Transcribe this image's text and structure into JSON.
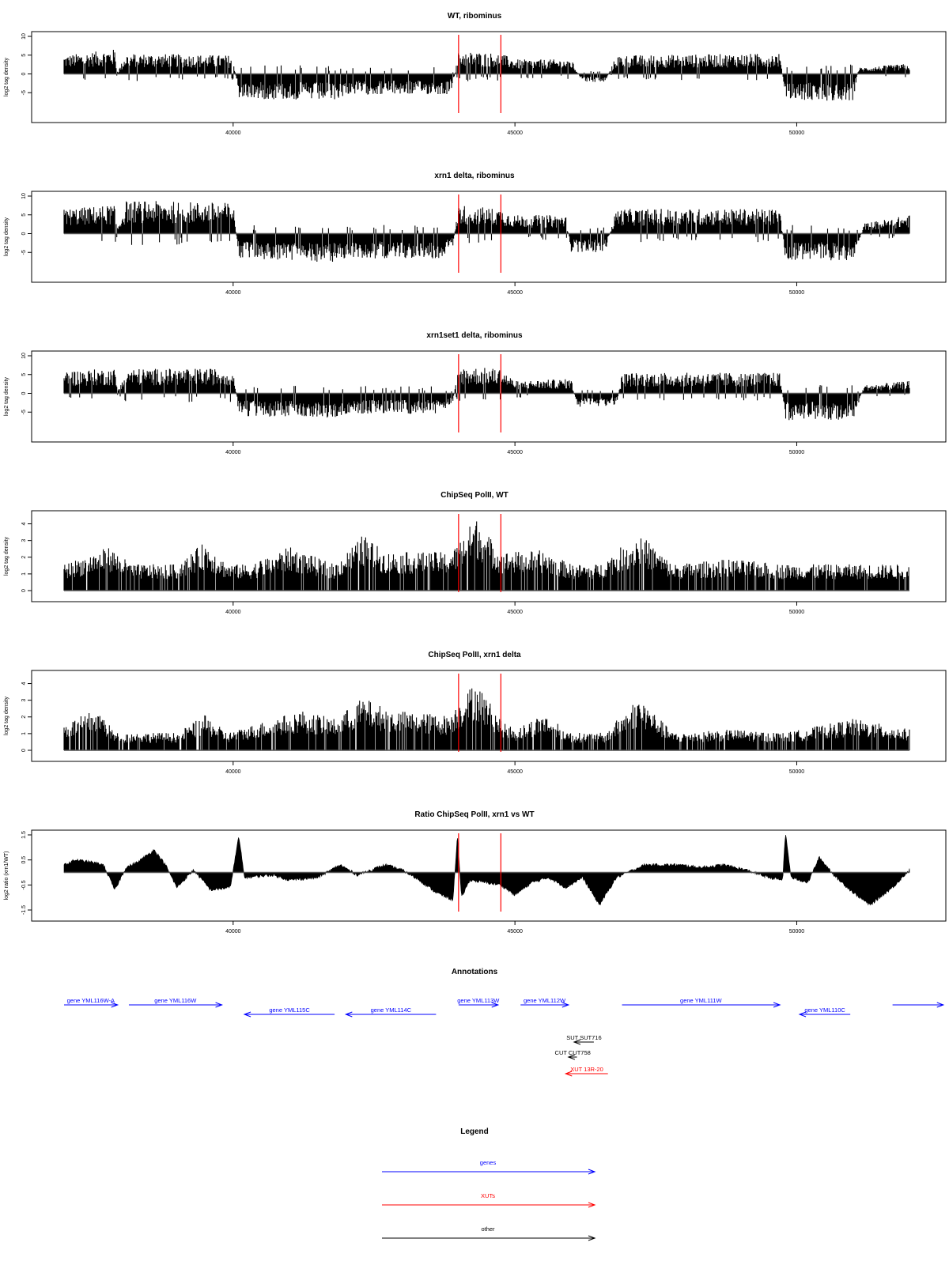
{
  "colors": {
    "gene": "#0000ff",
    "xut": "#ff0000",
    "other": "#000000",
    "marker": "#ff0000",
    "bars": "#000000"
  },
  "x_axis_ticks": [
    "40000",
    "45000",
    "50000"
  ],
  "chart_data": [
    {
      "id": "wt",
      "type": "bar",
      "title": "WT, ribominus",
      "ylabel": "log2 tag density",
      "xlim": [
        37000,
        52000
      ],
      "ylim": [
        -10,
        10
      ],
      "yticks": [
        "-5",
        "0",
        "5",
        "10"
      ],
      "grid": false,
      "markers_x": [
        44000,
        44750
      ],
      "profile": [
        [
          37000,
          4.5
        ],
        [
          37900,
          6
        ],
        [
          37950,
          0.5
        ],
        [
          38100,
          5
        ],
        [
          40000,
          4.5
        ],
        [
          40100,
          -6
        ],
        [
          41800,
          -6.5
        ],
        [
          42000,
          -5
        ],
        [
          43800,
          -5
        ],
        [
          43900,
          -3
        ],
        [
          44000,
          5.5
        ],
        [
          44750,
          5
        ],
        [
          45000,
          3.5
        ],
        [
          46000,
          3.5
        ],
        [
          46200,
          -2
        ],
        [
          46600,
          -2
        ],
        [
          46800,
          4.5
        ],
        [
          49700,
          5
        ],
        [
          49800,
          -6.5
        ],
        [
          51000,
          -6.5
        ],
        [
          51100,
          1.5
        ],
        [
          52000,
          2.5
        ]
      ]
    },
    {
      "id": "xrn1",
      "type": "bar",
      "title": "xrn1 delta, ribominus",
      "ylabel": "log2 tag density",
      "xlim": [
        37000,
        52000
      ],
      "ylim": [
        -10,
        10
      ],
      "yticks": [
        "-5",
        "0",
        "5",
        "10"
      ],
      "grid": false,
      "markers_x": [
        44000,
        44750
      ],
      "profile": [
        [
          37000,
          6
        ],
        [
          37900,
          7
        ],
        [
          37950,
          1.5
        ],
        [
          38100,
          8
        ],
        [
          40000,
          7.5
        ],
        [
          40100,
          -6
        ],
        [
          41800,
          -7
        ],
        [
          42000,
          -6
        ],
        [
          43700,
          -6
        ],
        [
          43900,
          -3
        ],
        [
          44000,
          7
        ],
        [
          44750,
          6
        ],
        [
          45000,
          4.5
        ],
        [
          45900,
          4.5
        ],
        [
          46000,
          -4.5
        ],
        [
          46600,
          -4.5
        ],
        [
          46800,
          6
        ],
        [
          49700,
          6
        ],
        [
          49800,
          -6.5
        ],
        [
          51000,
          -6.5
        ],
        [
          51200,
          2.5
        ],
        [
          52000,
          4.5
        ]
      ]
    },
    {
      "id": "xrn1set1",
      "type": "bar",
      "title": "xrn1set1 delta, ribominus",
      "ylabel": "log2 tag density",
      "xlim": [
        37000,
        52000
      ],
      "ylim": [
        -10,
        10
      ],
      "yticks": [
        "-5",
        "0",
        "5",
        "10"
      ],
      "grid": false,
      "markers_x": [
        44000,
        44750
      ],
      "profile": [
        [
          37000,
          5.5
        ],
        [
          37900,
          6
        ],
        [
          37950,
          1
        ],
        [
          38100,
          6
        ],
        [
          40000,
          6
        ],
        [
          40100,
          -5.5
        ],
        [
          41800,
          -6
        ],
        [
          42000,
          -5
        ],
        [
          43700,
          -5
        ],
        [
          43900,
          -2
        ],
        [
          44000,
          6.5
        ],
        [
          44750,
          6
        ],
        [
          45000,
          3
        ],
        [
          46000,
          3.5
        ],
        [
          46100,
          -3.5
        ],
        [
          46800,
          -3
        ],
        [
          46900,
          5
        ],
        [
          49700,
          5
        ],
        [
          49800,
          -6.5
        ],
        [
          51000,
          -6.5
        ],
        [
          51200,
          2
        ],
        [
          52000,
          3
        ]
      ]
    },
    {
      "id": "polii-wt",
      "type": "bar",
      "title": "ChipSeq PolII, WT",
      "ylabel": "log2 tag density",
      "xlim": [
        37000,
        52000
      ],
      "ylim": [
        0,
        4.5
      ],
      "yticks": [
        "0",
        "1",
        "2",
        "3",
        "4"
      ],
      "grid": false,
      "markers_x": [
        44000,
        44750
      ],
      "profile": [
        [
          37000,
          1.5
        ],
        [
          37800,
          2.5
        ],
        [
          38200,
          1.5
        ],
        [
          39000,
          1.5
        ],
        [
          39500,
          2.8
        ],
        [
          39900,
          1.5
        ],
        [
          40300,
          1.5
        ],
        [
          41000,
          2.5
        ],
        [
          41800,
          1.5
        ],
        [
          42300,
          3.2
        ],
        [
          42700,
          2.2
        ],
        [
          43800,
          2.2
        ],
        [
          43950,
          2.5
        ],
        [
          44300,
          4.2
        ],
        [
          44750,
          2.2
        ],
        [
          45500,
          2.3
        ],
        [
          46000,
          1.5
        ],
        [
          46500,
          1.5
        ],
        [
          47200,
          3.3
        ],
        [
          47800,
          1.5
        ],
        [
          48800,
          1.8
        ],
        [
          49800,
          1.5
        ],
        [
          52000,
          1.5
        ]
      ]
    },
    {
      "id": "polii-xrn1",
      "type": "bar",
      "title": "ChipSeq PolII, xrn1 delta",
      "ylabel": "log2 tag density",
      "xlim": [
        37000,
        52000
      ],
      "ylim": [
        0,
        4.5
      ],
      "yticks": [
        "0",
        "1",
        "2",
        "3",
        "4"
      ],
      "grid": false,
      "markers_x": [
        44000,
        44750
      ],
      "profile": [
        [
          37000,
          1.5
        ],
        [
          37600,
          2.4
        ],
        [
          37900,
          1
        ],
        [
          39000,
          1
        ],
        [
          39500,
          2
        ],
        [
          39900,
          1
        ],
        [
          40400,
          1.5
        ],
        [
          41200,
          2.3
        ],
        [
          41800,
          1.8
        ],
        [
          42300,
          3
        ],
        [
          42800,
          2.3
        ],
        [
          43800,
          2
        ],
        [
          43950,
          2.5
        ],
        [
          44300,
          4
        ],
        [
          44750,
          1.8
        ],
        [
          45000,
          1.2
        ],
        [
          45500,
          2.1
        ],
        [
          46000,
          1
        ],
        [
          46600,
          1
        ],
        [
          47200,
          3.1
        ],
        [
          47800,
          1
        ],
        [
          48800,
          1.2
        ],
        [
          49800,
          1
        ],
        [
          51000,
          1.8
        ],
        [
          52000,
          1.2
        ]
      ]
    },
    {
      "id": "ratio",
      "type": "area",
      "title": "Ratio ChipSeq PolII, xrn1 vs WT",
      "ylabel": "log2 ratio (xrn1/WT)",
      "xlim": [
        37000,
        52000
      ],
      "ylim": [
        -1.5,
        1.5
      ],
      "yticks": [
        "-1.5",
        "-0.5",
        "0.5",
        "1.5"
      ],
      "grid": false,
      "markers_x": [
        44000,
        44750
      ],
      "profile": [
        [
          37000,
          0.3
        ],
        [
          37200,
          0.5
        ],
        [
          37500,
          0.4
        ],
        [
          37700,
          0.3
        ],
        [
          37900,
          -0.7
        ],
        [
          38100,
          0.2
        ],
        [
          38300,
          0.4
        ],
        [
          38600,
          0.9
        ],
        [
          38800,
          0.3
        ],
        [
          39000,
          -0.6
        ],
        [
          39300,
          0.1
        ],
        [
          39600,
          -0.7
        ],
        [
          39950,
          -0.6
        ],
        [
          40100,
          1.45
        ],
        [
          40200,
          -0.2
        ],
        [
          40700,
          -0.1
        ],
        [
          41000,
          -0.3
        ],
        [
          41500,
          -0.2
        ],
        [
          41900,
          0.3
        ],
        [
          42200,
          -0.1
        ],
        [
          42700,
          0.3
        ],
        [
          43000,
          0.1
        ],
        [
          43300,
          -0.3
        ],
        [
          43600,
          -0.8
        ],
        [
          43900,
          -1.1
        ],
        [
          43980,
          1.5
        ],
        [
          44050,
          -1
        ],
        [
          44200,
          -0.3
        ],
        [
          44750,
          -0.5
        ],
        [
          45000,
          -0.9
        ],
        [
          45300,
          -0.4
        ],
        [
          45600,
          -0.2
        ],
        [
          45900,
          -0.6
        ],
        [
          46200,
          -0.2
        ],
        [
          46500,
          -1.3
        ],
        [
          46800,
          -0.2
        ],
        [
          47300,
          0.3
        ],
        [
          47900,
          0.3
        ],
        [
          48300,
          0.2
        ],
        [
          48700,
          0.3
        ],
        [
          49100,
          0.1
        ],
        [
          49500,
          -0.2
        ],
        [
          49750,
          -0.3
        ],
        [
          49800,
          1.6
        ],
        [
          49900,
          -0.2
        ],
        [
          50200,
          -0.4
        ],
        [
          50400,
          0.6
        ],
        [
          50700,
          -0.2
        ],
        [
          51000,
          -0.8
        ],
        [
          51300,
          -1.3
        ],
        [
          51700,
          -0.6
        ],
        [
          52000,
          0.1
        ]
      ]
    }
  ],
  "annotations": {
    "title": "Annotations",
    "items": [
      {
        "label": "gene YML116W-A",
        "type": "gene",
        "x1": 37000,
        "x2": 37950,
        "dir": "right",
        "row": 0
      },
      {
        "label": "gene YML116W",
        "type": "gene",
        "x1": 38150,
        "x2": 39800,
        "dir": "right",
        "row": 0
      },
      {
        "label": "gene YML115C",
        "type": "gene",
        "x1": 40200,
        "x2": 41800,
        "dir": "left",
        "row": 1
      },
      {
        "label": "gene YML114C",
        "type": "gene",
        "x1": 42000,
        "x2": 43600,
        "dir": "left",
        "row": 1
      },
      {
        "label": "gene YML113W",
        "type": "gene",
        "x1": 44000,
        "x2": 44700,
        "dir": "right",
        "row": 0
      },
      {
        "label": "gene YML112W",
        "type": "gene",
        "x1": 45100,
        "x2": 45950,
        "dir": "right",
        "row": 0
      },
      {
        "label": "gene YML111W",
        "type": "gene",
        "x1": 46900,
        "x2": 49700,
        "dir": "right",
        "row": 0
      },
      {
        "label": "gene YML110C",
        "type": "gene",
        "x1": 50050,
        "x2": 50950,
        "dir": "left",
        "row": 1
      },
      {
        "label": "",
        "type": "gene",
        "x1": 51700,
        "x2": 52600,
        "dir": "right",
        "row": 0
      },
      {
        "label": "SUT SUT716",
        "type": "other",
        "x1": 46050,
        "x2": 46400,
        "dir": "left",
        "row": 2
      },
      {
        "label": "CUT CUT758",
        "type": "other",
        "x1": 45950,
        "x2": 46100,
        "dir": "left",
        "row": 3
      },
      {
        "label": "XUT 13R-20",
        "type": "xut",
        "x1": 45900,
        "x2": 46650,
        "dir": "left",
        "row": 4
      }
    ]
  },
  "legend": {
    "title": "Legend",
    "entries": [
      {
        "label": "genes",
        "type": "gene"
      },
      {
        "label": "XUTs",
        "type": "xut"
      },
      {
        "label": "other",
        "type": "other"
      }
    ]
  }
}
